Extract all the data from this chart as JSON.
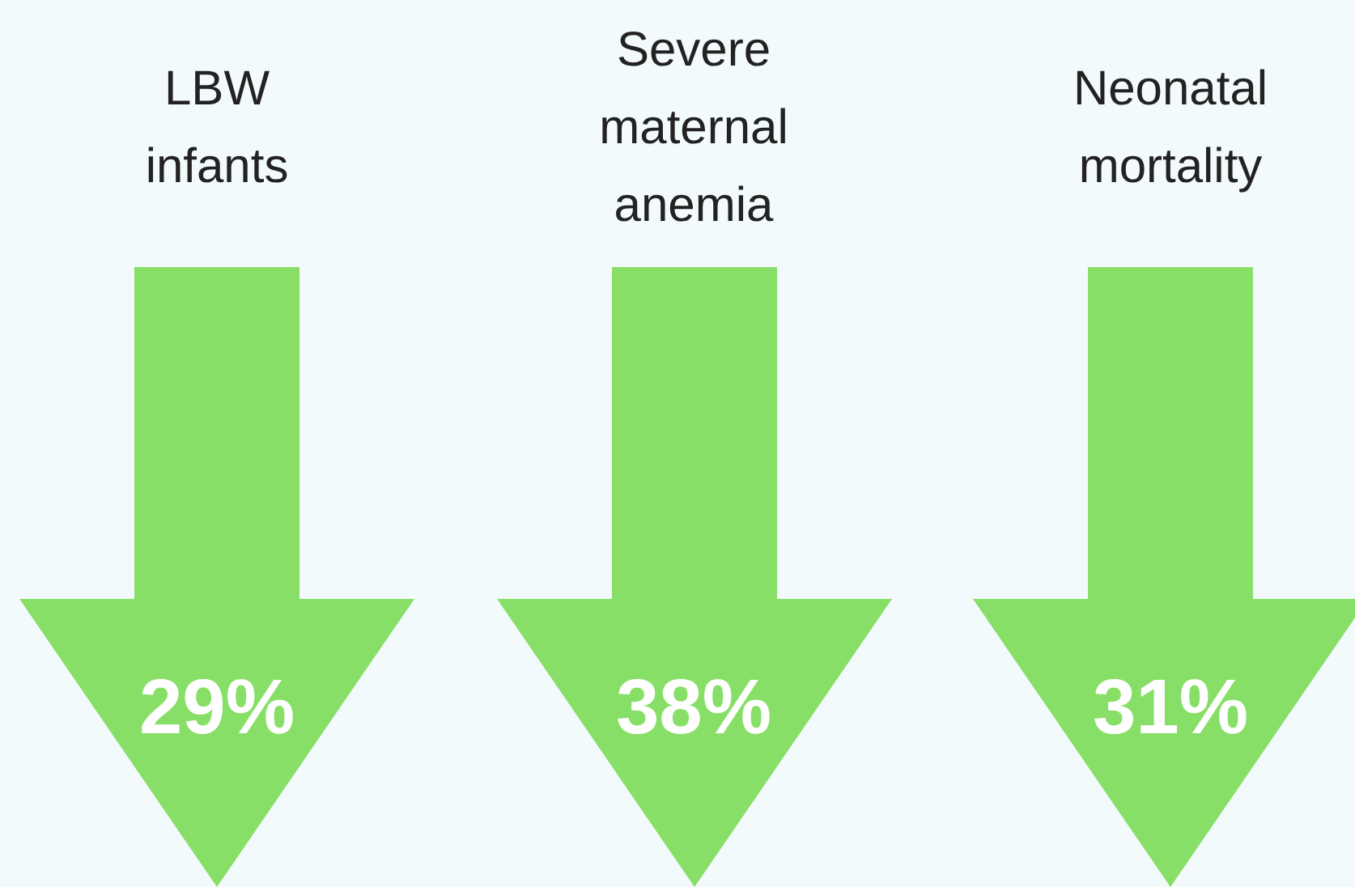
{
  "chart_data": {
    "type": "other",
    "categories": [
      "LBW infants",
      "Severe maternal anemia",
      "Neonatal mortality"
    ],
    "values": [
      29,
      38,
      31
    ],
    "value_labels": [
      "29%",
      "38%",
      "31%"
    ],
    "color": "#88df68"
  }
}
